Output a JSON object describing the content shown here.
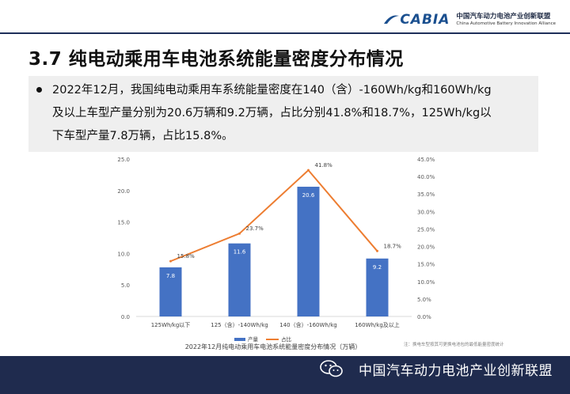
{
  "header": {
    "logo_abbr": "CABIA",
    "logo_cn": "中国汽车动力电池产业创新联盟",
    "logo_en": "China Automotive Battery Innovation Alliance",
    "brand_color": "#1a4f8f"
  },
  "slide": {
    "title": "3.7 纯电动乘用车电池系统能量密度分布情况",
    "bullet_lines": [
      "2022年12月，我国纯电动乘用车系统能量密度在140（含）-160Wh/kg和160Wh/kg",
      "及以上车型产量分别为20.6万辆和9.2万辆，占比分别41.8%和18.7%，125Wh/kg以",
      "下车型产量7.8万辆，占比15.8%。"
    ]
  },
  "chart_data": {
    "type": "bar",
    "title": "2022年12月纯电动乘用车电池系统能量密度分布情况（万辆）",
    "note": "注：换电车型按其可更换电池包的最低能量密度统计",
    "categories": [
      "125Wh/kg以下",
      "125（含）-140Wh/kg",
      "140（含）-160Wh/kg",
      "160Wh/kg及以上"
    ],
    "series": [
      {
        "name": "产量",
        "type": "bar",
        "axis": "left",
        "color": "#4472c4",
        "values": [
          7.8,
          11.6,
          20.6,
          9.2
        ],
        "labels": [
          "7.8",
          "11.6",
          "20.6",
          "9.2"
        ]
      },
      {
        "name": "占比",
        "type": "line",
        "axis": "right",
        "color": "#ed7d31",
        "values": [
          15.8,
          23.7,
          41.8,
          18.7
        ],
        "labels": [
          "15.8%",
          "23.7%",
          "41.8%",
          "18.7%"
        ]
      }
    ],
    "ylim": [
      0,
      25
    ],
    "yticks": [
      "0.0",
      "5.0",
      "10.0",
      "15.0",
      "20.0",
      "25.0"
    ],
    "y2lim": [
      0,
      45
    ],
    "y2ticks": [
      "0.0%",
      "5.0%",
      "10.0%",
      "15.0%",
      "20.0%",
      "25.0%",
      "30.0%",
      "35.0%",
      "40.0%",
      "45.0%"
    ],
    "grid": false,
    "legend": "bottom-center"
  },
  "footer": {
    "text": "中国汽车动力电池产业创新联盟",
    "icon": "wechat-icon"
  }
}
